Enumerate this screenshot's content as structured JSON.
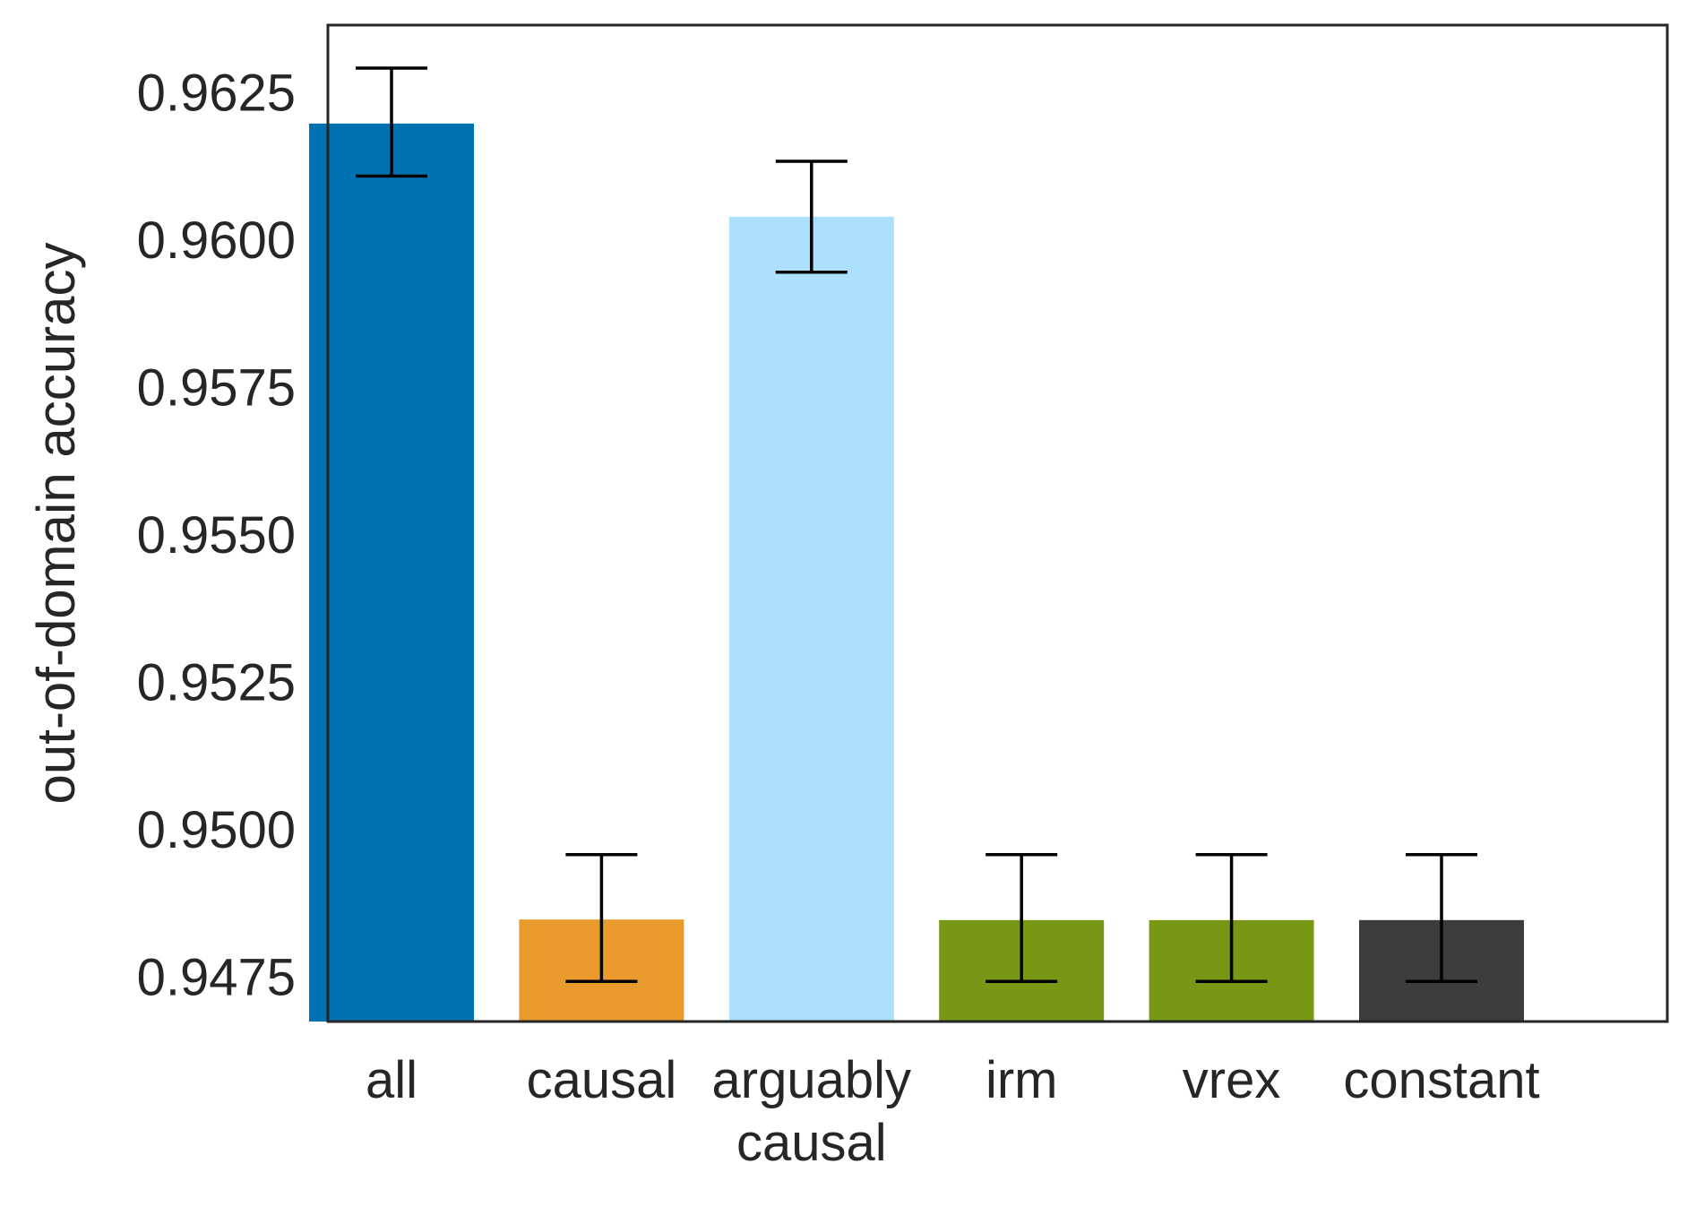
{
  "chart_data": {
    "type": "bar",
    "title": "",
    "xlabel": "",
    "ylabel": "out-of-domain accuracy",
    "ylim": [
      0.94675,
      0.96365
    ],
    "yticks": [
      0.9475,
      0.95,
      0.9525,
      0.955,
      0.9575,
      0.96,
      0.9625
    ],
    "ytick_labels": [
      "0.9475",
      "0.9500",
      "0.9525",
      "0.9550",
      "0.9575",
      "0.9600",
      "0.9625"
    ],
    "grid": false,
    "categories": [
      {
        "label": "all",
        "lines": [
          "all"
        ]
      },
      {
        "label": "causal",
        "lines": [
          "causal"
        ]
      },
      {
        "label": "arguably causal",
        "lines": [
          "arguably",
          "causal"
        ]
      },
      {
        "label": "irm",
        "lines": [
          "irm"
        ]
      },
      {
        "label": "vrex",
        "lines": [
          "vrex"
        ]
      },
      {
        "label": "constant",
        "lines": [
          "constant"
        ]
      }
    ],
    "values": [
      0.96198,
      0.94848,
      0.9604,
      0.94847,
      0.94847,
      0.94847
    ],
    "error_low": [
      0.96109,
      0.94743,
      0.95946,
      0.94743,
      0.94743,
      0.94743
    ],
    "error_high": [
      0.96292,
      0.94958,
      0.96134,
      0.94958,
      0.94958,
      0.94958
    ],
    "colors": [
      "#0072B2",
      "#E99A2C",
      "#ADE0FE",
      "#779715",
      "#779715",
      "#3C3C3C"
    ],
    "error_color": "#000000",
    "frame_color": "#262626"
  }
}
